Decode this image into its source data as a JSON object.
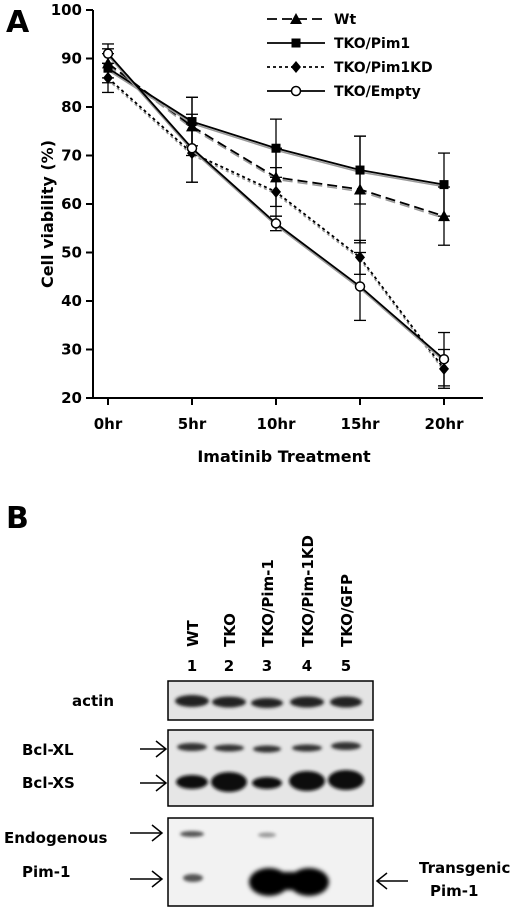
{
  "panels": {
    "a": "A",
    "b": "B"
  },
  "chart_data": {
    "type": "line",
    "title": "",
    "xlabel": "Imatinib Treatment",
    "ylabel": "Cell viability (%)",
    "categories": [
      "0hr",
      "5hr",
      "10hr",
      "15hr",
      "20hr"
    ],
    "ylim": [
      20,
      100
    ],
    "yticks": [
      20,
      30,
      40,
      50,
      60,
      70,
      80,
      90,
      100
    ],
    "grid": false,
    "legend": "top-right",
    "series": [
      {
        "name": "Wt",
        "marker": "triangle",
        "dash": "dashed",
        "values": [
          89,
          76,
          65.5,
          63,
          57.5
        ],
        "errors": [
          3,
          6,
          6,
          11,
          6
        ]
      },
      {
        "name": "TKO/Pim1",
        "marker": "square",
        "dash": "solid",
        "values": [
          88,
          77,
          71.5,
          67,
          64
        ],
        "errors": [
          3,
          5,
          6,
          7,
          6.5
        ]
      },
      {
        "name": "TKO/Pim1KD",
        "marker": "diamond",
        "dash": "dotted",
        "values": [
          86,
          70.5,
          62.5,
          49,
          26
        ],
        "errors": [
          3,
          6,
          5,
          3.5,
          4
        ]
      },
      {
        "name": "TKO/Empty",
        "marker": "circle-open",
        "dash": "solid",
        "values": [
          91,
          71.5,
          56,
          43,
          28
        ],
        "errors": [
          2,
          7,
          1.5,
          7,
          5.5
        ]
      }
    ]
  },
  "blot": {
    "lanes": [
      {
        "number": "1",
        "label": "WT"
      },
      {
        "number": "2",
        "label": "TKO"
      },
      {
        "number": "3",
        "label": "TKO/Pim-1"
      },
      {
        "number": "4",
        "label": "TKO/Pim-1KD"
      },
      {
        "number": "5",
        "label": "TKO/GFP"
      }
    ],
    "rows": {
      "actin": "actin",
      "bclxl": "Bcl-XL",
      "bclxs": "Bcl-XS",
      "endogenous_1": "Endogenous",
      "endogenous_2": "Pim-1",
      "transgenic_1": "Transgenic",
      "transgenic_2": "Pim-1"
    }
  }
}
